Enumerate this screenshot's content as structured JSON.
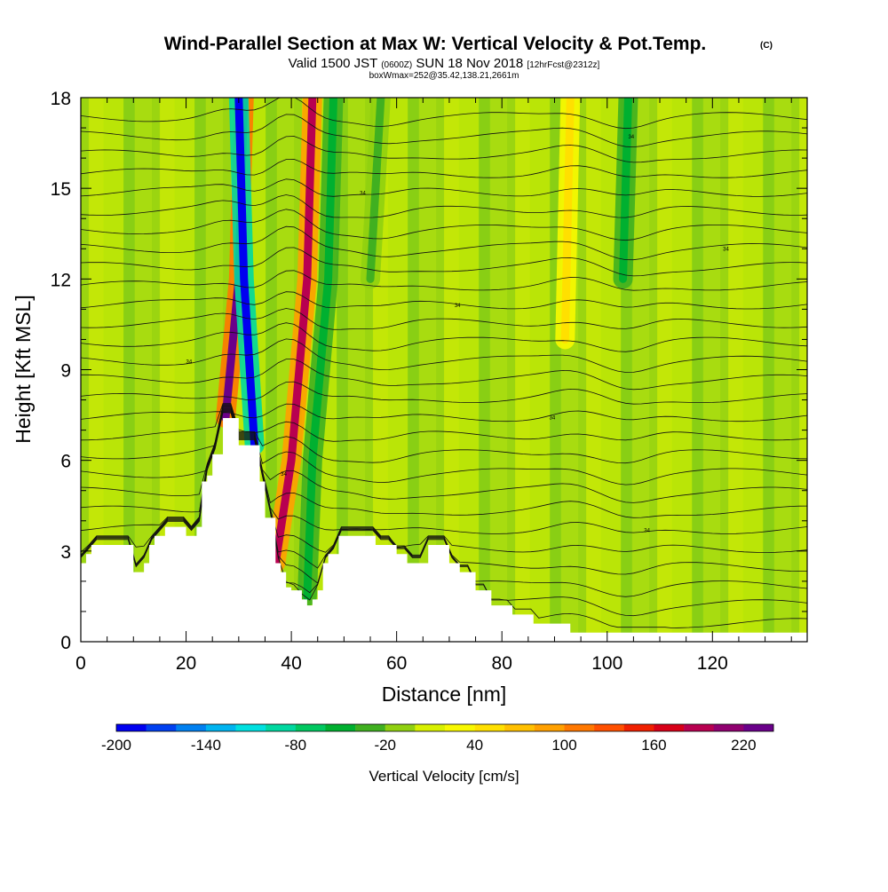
{
  "header": {
    "title": "Wind-Parallel Section at Max W: Vertical Velocity & Pot.Temp.",
    "copyright_mark": "(C)",
    "valid_prefix": "Valid 1500 JST",
    "valid_utc": "(0600Z)",
    "valid_date": "SUN 18 Nov 2018",
    "forecast_tag": "[12hrFcst@2312z]",
    "box_info": "boxWmax=252@35.42,138.21,2661m"
  },
  "chart_data": {
    "type": "heatmap",
    "title": "Wind-Parallel Section at Max W: Vertical Velocity & Pot.Temp.",
    "xlabel": "Distance [nm]",
    "ylabel": "Height [Kft MSL]",
    "xlim": [
      0,
      138
    ],
    "ylim": [
      0,
      18
    ],
    "x_ticks": [
      0,
      20,
      40,
      60,
      80,
      100,
      120
    ],
    "y_ticks": [
      0,
      3,
      6,
      9,
      12,
      15,
      18
    ],
    "colorbar": {
      "label": "Vertical Velocity [cm/s]",
      "tick_labels": [
        "-200",
        "-140",
        "-80",
        "-20",
        "40",
        "100",
        "160",
        "220"
      ],
      "range": [
        -200,
        240
      ],
      "step": 20,
      "colors": [
        "#0000f0",
        "#0040f0",
        "#0080f0",
        "#00b4f0",
        "#00e0e0",
        "#00d8a0",
        "#00c860",
        "#00b030",
        "#40b020",
        "#90d010",
        "#d8f000",
        "#f8f800",
        "#ffe000",
        "#ffc000",
        "#ffa000",
        "#ff7800",
        "#ff5000",
        "#f02000",
        "#d80018",
        "#b80050",
        "#900070",
        "#6a008a"
      ]
    },
    "background_velocity_cm_s": "-20 to 20",
    "terrain_profile_kft": {
      "x": [
        0,
        1,
        2,
        5,
        9,
        10,
        12,
        13,
        14,
        16,
        18,
        20,
        22,
        23,
        24,
        25,
        27,
        29,
        30,
        32,
        33,
        34,
        35,
        37,
        38,
        39,
        40,
        41,
        42,
        43,
        44,
        45,
        46,
        47,
        49,
        53,
        56,
        58,
        60,
        62,
        64,
        66,
        68,
        70,
        72,
        75,
        78,
        82,
        86,
        90,
        93,
        96,
        100,
        105,
        110,
        118,
        125,
        130,
        138
      ],
      "height": [
        2.6,
        2.9,
        3.2,
        3.2,
        3.2,
        2.3,
        2.6,
        3.2,
        3.5,
        3.8,
        3.8,
        3.5,
        3.8,
        5.3,
        5.5,
        6.2,
        7.4,
        7.4,
        6.5,
        6.5,
        6.5,
        5.3,
        4.1,
        2.6,
        2.3,
        1.8,
        1.7,
        1.7,
        1.4,
        1.2,
        1.4,
        1.7,
        2.6,
        2.9,
        3.5,
        3.5,
        3.2,
        3.2,
        2.9,
        2.6,
        2.6,
        3.2,
        3.2,
        2.6,
        2.3,
        1.7,
        1.2,
        0.9,
        0.6,
        0.6,
        0.3,
        0.3,
        0.3,
        0.3,
        0.3,
        0.3,
        0.3,
        0.3,
        0.3
      ]
    },
    "features": [
      {
        "name": "updraft-core-a",
        "x_kft_path": [
          [
            27.5,
            7.4
          ],
          [
            30,
            12
          ],
          [
            31,
            18
          ]
        ],
        "velocity_cm_s": 220
      },
      {
        "name": "downdraft-core-a",
        "x_kft_path": [
          [
            33,
            6.5
          ],
          [
            31,
            12
          ],
          [
            30,
            18
          ]
        ],
        "velocity_cm_s": -200
      },
      {
        "name": "updraft-core-b",
        "x_kft_path": [
          [
            37,
            2.6
          ],
          [
            40,
            6
          ],
          [
            43,
            12
          ],
          [
            44,
            18
          ]
        ],
        "velocity_cm_s": 180
      },
      {
        "name": "downdraft-core-b",
        "x_kft_path": [
          [
            43,
            1.5
          ],
          [
            44,
            6
          ],
          [
            47,
            12
          ],
          [
            48,
            18
          ]
        ],
        "velocity_cm_s": -60
      },
      {
        "name": "downdraft-band-c",
        "x_kft_path": [
          [
            55,
            12
          ],
          [
            57,
            18
          ]
        ],
        "velocity_cm_s": -40
      },
      {
        "name": "updraft-band-d",
        "x_kft_path": [
          [
            92,
            10
          ],
          [
            93,
            18
          ]
        ],
        "velocity_cm_s": 40
      },
      {
        "name": "downdraft-band-e",
        "x_kft_path": [
          [
            103,
            12
          ],
          [
            104,
            18
          ]
        ],
        "velocity_cm_s": -60
      }
    ],
    "isentrope_label": "34"
  }
}
